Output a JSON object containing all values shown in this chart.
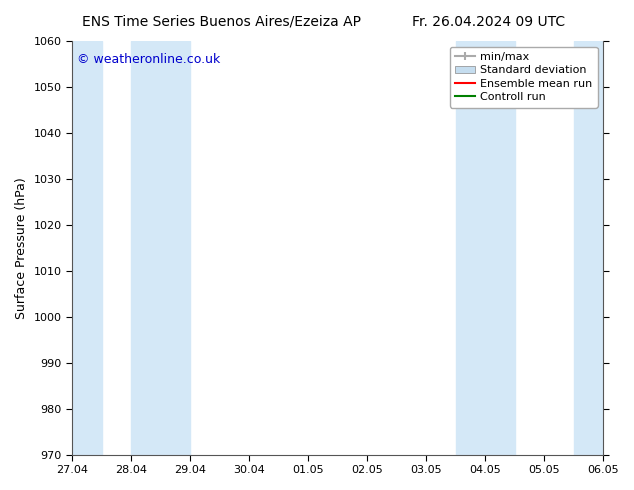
{
  "title_left": "ENS Time Series Buenos Aires/Ezeiza AP",
  "title_right": "Fr. 26.04.2024 09 UTC",
  "ylabel": "Surface Pressure (hPa)",
  "ylim": [
    970,
    1060
  ],
  "yticks": [
    970,
    980,
    990,
    1000,
    1010,
    1020,
    1030,
    1040,
    1050,
    1060
  ],
  "xlim_start": 0,
  "xlim_end": 9,
  "xtick_labels": [
    "27.04",
    "28.04",
    "29.04",
    "30.04",
    "01.05",
    "02.05",
    "03.05",
    "04.05",
    "05.05",
    "06.05"
  ],
  "xtick_positions": [
    0,
    1,
    2,
    3,
    4,
    5,
    6,
    7,
    8,
    9
  ],
  "shaded_bands": [
    {
      "xmin": 0.0,
      "xmax": 0.5,
      "color": "#d4e8f7"
    },
    {
      "xmin": 1.0,
      "xmax": 2.0,
      "color": "#d4e8f7"
    },
    {
      "xmin": 6.5,
      "xmax": 7.5,
      "color": "#d4e8f7"
    },
    {
      "xmin": 8.5,
      "xmax": 9.0,
      "color": "#d4e8f7"
    }
  ],
  "watermark_text": "© weatheronline.co.uk",
  "watermark_color": "#0000cc",
  "legend_items": [
    {
      "label": "min/max",
      "color": "#aaaaaa",
      "style": "errorbar"
    },
    {
      "label": "Standard deviation",
      "color": "#c5ddef",
      "style": "bar"
    },
    {
      "label": "Ensemble mean run",
      "color": "red",
      "style": "line"
    },
    {
      "label": "Controll run",
      "color": "green",
      "style": "line"
    }
  ],
  "background_color": "#ffffff",
  "plot_bg_color": "#ffffff",
  "border_color": "#555555",
  "title_fontsize": 10,
  "label_fontsize": 9,
  "tick_fontsize": 8,
  "watermark_fontsize": 9
}
